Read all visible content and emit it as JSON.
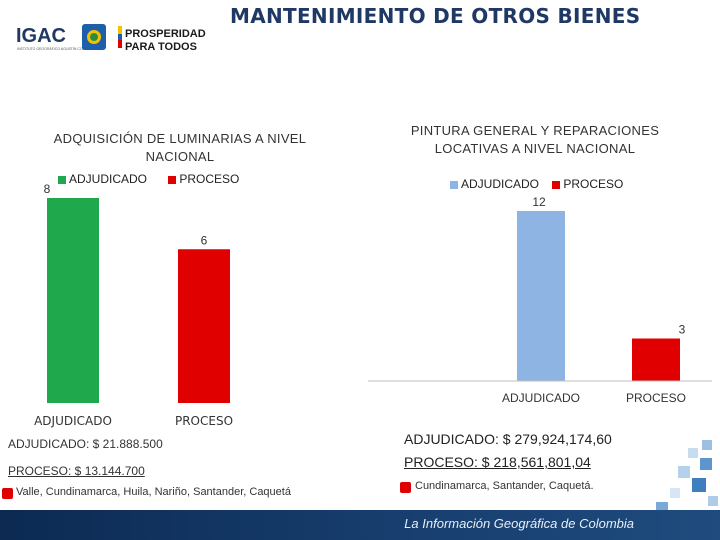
{
  "header": {
    "title": "MANTENIMIENTO DE OTROS BIENES",
    "logo_igac": "IGAC",
    "logo_igac_sub": "INSTITUTO GEOGRÁFICO AGUSTÍN CODAZZI",
    "logo_prosperidad_1": "PROSPERIDAD",
    "logo_prosperidad_2": "PARA TODOS"
  },
  "chart_data": [
    {
      "type": "bar",
      "title": "ADQUISICIÓN DE LUMINARIAS A NIVEL NACIONAL",
      "categories": [
        "ADJUDICADO",
        "PROCESO"
      ],
      "values": [
        8,
        6
      ],
      "colors": [
        "#20a84d",
        "#e00000"
      ],
      "legend": [
        "ADJUDICADO",
        "PROCESO"
      ],
      "ylim": [
        0,
        8
      ]
    },
    {
      "type": "bar",
      "title": "PINTURA GENERAL Y REPARACIONES LOCATIVAS A NIVEL NACIONAL",
      "categories": [
        "ADJUDICADO",
        "PROCESO"
      ],
      "values": [
        12,
        3
      ],
      "colors": [
        "#8eb4e3",
        "#e00000"
      ],
      "legend": [
        "ADJUDICADO",
        "PROCESO"
      ],
      "ylim": [
        0,
        12
      ]
    }
  ],
  "left_info": {
    "adjudicado": "ADJUDICADO: $ 21.888.500",
    "proceso": "PROCESO: $ 13.144.700",
    "locations": "Valle, Cundinamarca, Huila, Nariño, Santander, Caquetá"
  },
  "right_info": {
    "adjudicado": "ADJUDICADO: $ 279,924,174,60",
    "proceso": "PROCESO: $ 218,561,801,04",
    "locations": "Cundinamarca, Santander, Caquetá."
  },
  "footer": {
    "text": "La Información Geográfica de Colombia"
  },
  "colors": {
    "title": "#1f3864",
    "green": "#20a84d",
    "red": "#e00000",
    "lightblue": "#8eb4e3",
    "footer": "#173e6e"
  }
}
